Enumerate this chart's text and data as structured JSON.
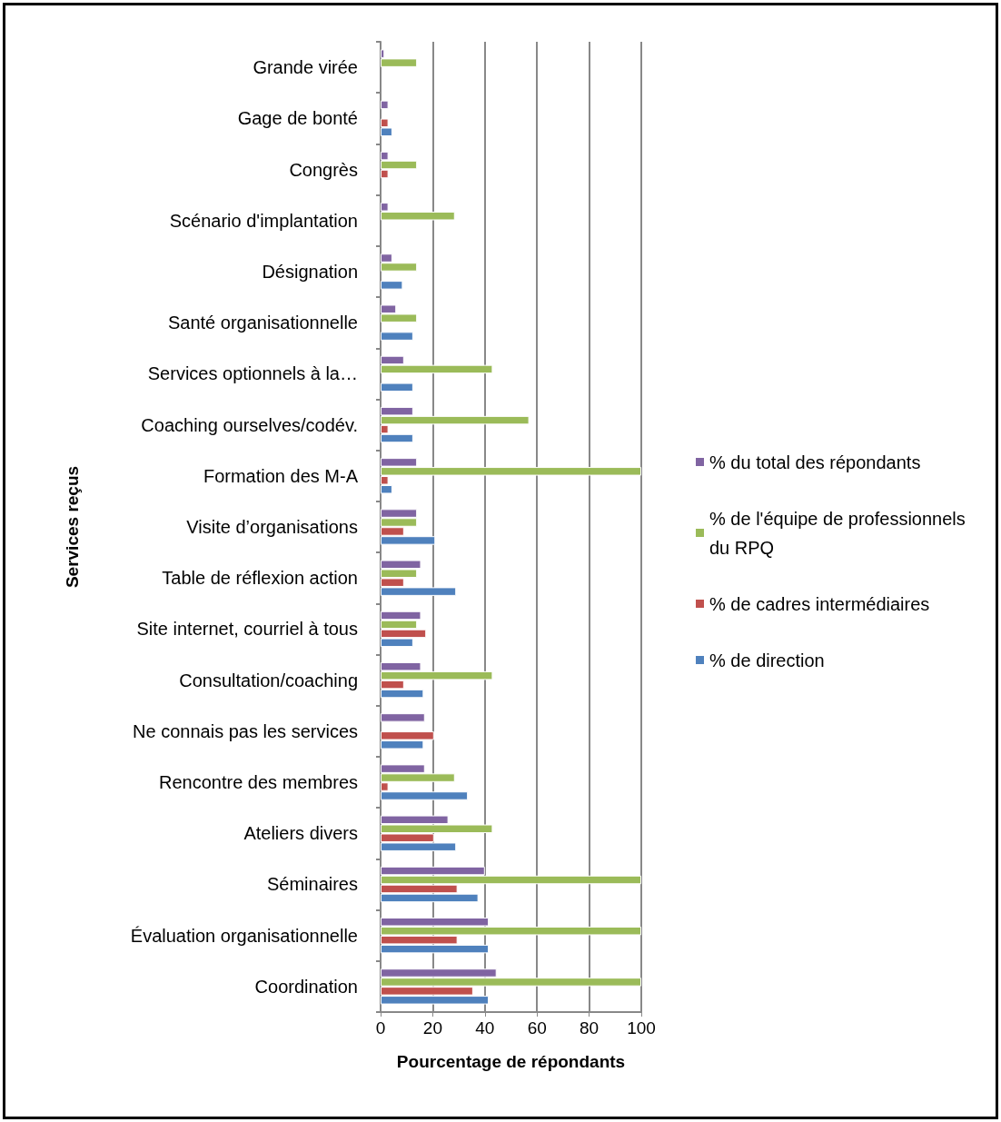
{
  "chart_data": {
    "type": "bar",
    "orientation": "horizontal",
    "xlabel": "Pourcentage de répondants",
    "ylabel": "Services reçus",
    "categories": [
      "Grande virée",
      "Gage de bonté",
      "Congrès",
      "Scénario d'implantation",
      "Désignation",
      "Santé organisationnelle",
      "Services optionnels à la…",
      "Coaching ourselves/codév.",
      "Formation des M-A",
      "Visite d’organisations",
      "Table de réflexion action",
      "Site internet, courriel à tous",
      "Consultation/coaching",
      "Ne connais pas les services",
      "Rencontre des membres",
      "Ateliers divers",
      "Séminaires",
      "Évaluation organisationnelle",
      "Coordination"
    ],
    "series": [
      {
        "name": "% du total des répondants",
        "color": "#8064a2",
        "values": [
          1.5,
          3,
          3,
          3,
          4.5,
          6,
          9,
          12.5,
          14,
          14,
          15.5,
          15.5,
          15.5,
          17,
          17,
          26,
          40,
          41.5,
          44.5
        ]
      },
      {
        "name": "% de l'équipe de professionnels du RPQ",
        "color": "#9bbb59",
        "values": [
          14,
          null,
          14,
          28.5,
          14,
          14,
          43,
          57,
          100,
          14,
          14,
          14,
          43,
          null,
          28.5,
          43,
          100,
          100,
          100
        ]
      },
      {
        "name": "% de cadres intermédiaires",
        "color": "#c0504d",
        "values": [
          null,
          3,
          3,
          null,
          null,
          null,
          null,
          3,
          3,
          9,
          9,
          17.5,
          9,
          20.5,
          3,
          20.5,
          29.5,
          29.5,
          35.5
        ]
      },
      {
        "name": "% de direction",
        "color": "#4f81bd",
        "values": [
          null,
          4.5,
          null,
          null,
          8.5,
          12.5,
          12.5,
          12.5,
          4.5,
          21,
          29,
          12.5,
          16.5,
          16.5,
          33.5,
          29,
          37.5,
          41.5,
          41.5
        ]
      }
    ],
    "xlim": [
      0,
      100
    ],
    "xticks": [
      0,
      20,
      40,
      60,
      80,
      100
    ],
    "grid": "x",
    "legend": "right"
  }
}
